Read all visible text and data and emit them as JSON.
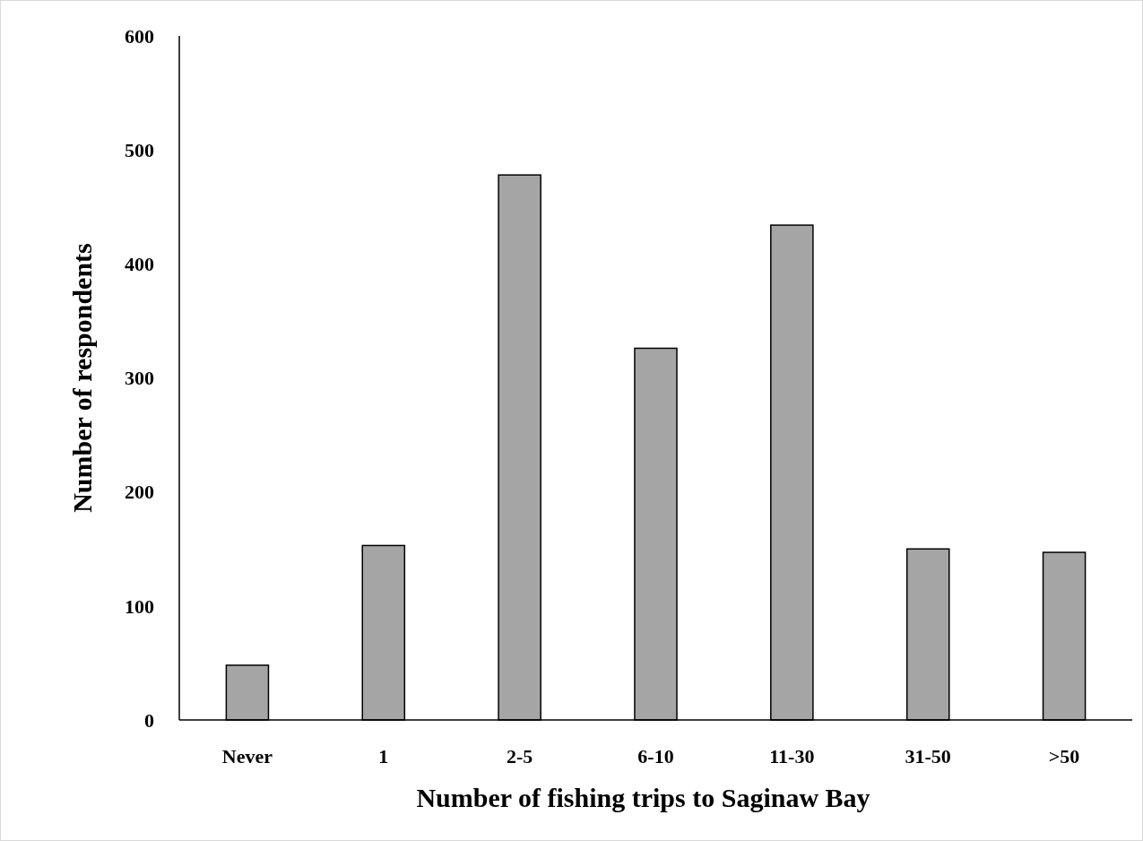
{
  "chart_data": {
    "type": "bar",
    "xlabel": "Number of fishing trips to Saginaw Bay",
    "ylabel": "Number of respondents",
    "categories": [
      "Never",
      "1",
      "2-5",
      "6-10",
      "11-30",
      "31-50",
      ">50"
    ],
    "values": [
      48,
      153,
      478,
      326,
      434,
      150,
      147
    ],
    "color": "#a5a5a5",
    "ylim": [
      0,
      600
    ],
    "yticks": [
      0,
      100,
      200,
      300,
      400,
      500,
      600
    ]
  }
}
